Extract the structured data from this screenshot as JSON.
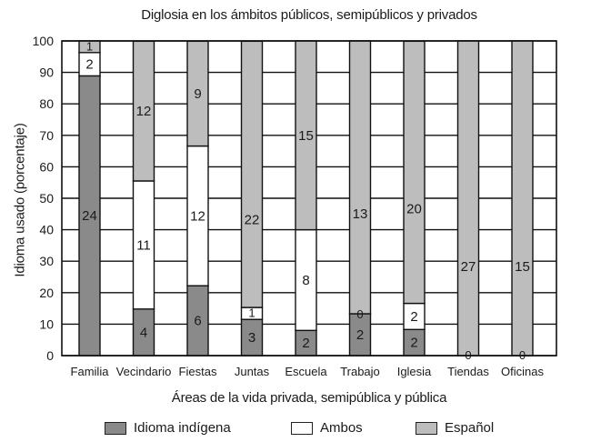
{
  "chart_data": {
    "type": "bar",
    "stacked": true,
    "title": "Diglosia en los ámbitos públicos, semipúblicos y privados",
    "xlabel": "Áreas de la vida privada, semipública y pública",
    "ylabel": "Idioma usado (porcentaje)",
    "ylim": [
      0,
      100
    ],
    "yticks": [
      0,
      10,
      20,
      30,
      40,
      50,
      60,
      70,
      80,
      90,
      100
    ],
    "grid": true,
    "legend_position": "bottom",
    "categories": [
      "Familia",
      "Vecindario",
      "Fiestas",
      "Juntas",
      "Escuela",
      "Trabajo",
      "Iglesia",
      "Tiendas",
      "Oficinas"
    ],
    "series": [
      {
        "name": "Idioma indígena",
        "color": "#8a8a8a",
        "counts": [
          24,
          4,
          6,
          3,
          2,
          2,
          2,
          0,
          0
        ],
        "values": [
          88.9,
          14.8,
          22.2,
          11.5,
          8.0,
          13.3,
          8.3,
          0,
          0
        ]
      },
      {
        "name": "Ambos",
        "color": "#ffffff",
        "counts": [
          2,
          11,
          12,
          1,
          8,
          0,
          2,
          0,
          0
        ],
        "values": [
          7.4,
          40.7,
          44.4,
          3.8,
          32.0,
          0,
          8.3,
          0,
          0
        ]
      },
      {
        "name": "Español",
        "color": "#bdbdbd",
        "counts": [
          1,
          12,
          9,
          22,
          15,
          13,
          20,
          27,
          15
        ],
        "values": [
          3.7,
          44.4,
          33.3,
          84.6,
          60.0,
          86.7,
          83.3,
          100,
          100
        ]
      }
    ]
  },
  "legend": {
    "items": [
      {
        "label": "Idioma indígena",
        "color": "#8a8a8a"
      },
      {
        "label": "Ambos",
        "color": "#ffffff"
      },
      {
        "label": "Español",
        "color": "#bdbdbd"
      }
    ]
  }
}
